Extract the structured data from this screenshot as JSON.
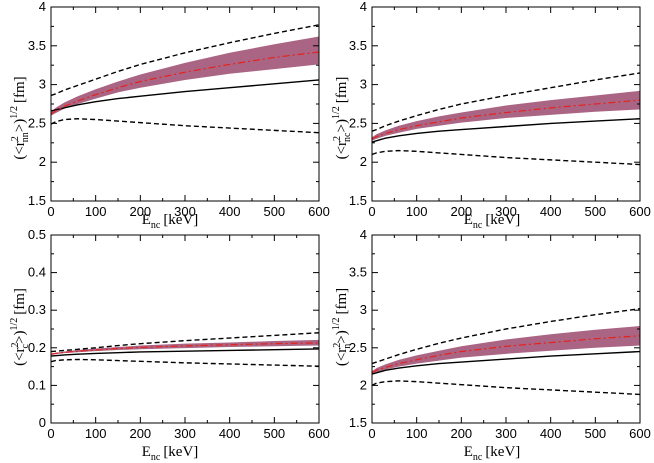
{
  "chart_data": [
    {
      "type": "line",
      "panel": "top-left",
      "xlabel": "E",
      "xlabel_sub": "nc",
      "xlabel_unit": "[keV]",
      "ylabel": {
        "open": "(<r",
        "sup": "2",
        "sub": "nn",
        "close": ">)",
        "power": "1/2",
        "unit": "[fm]"
      },
      "xlim": [
        0,
        600
      ],
      "ylim": [
        1.5,
        4
      ],
      "xticks": [
        "0",
        "100",
        "200",
        "300",
        "400",
        "500",
        "600"
      ],
      "yticks": [
        "1.5",
        "2",
        "2.5",
        "3",
        "3.5",
        "4"
      ],
      "series": [
        {
          "name": "upper-dashed",
          "style": "dashed",
          "x": [
            0,
            10,
            30,
            60,
            100,
            150,
            200,
            300,
            400,
            500,
            600
          ],
          "y": [
            2.86,
            2.88,
            2.93,
            2.99,
            3.07,
            3.17,
            3.26,
            3.41,
            3.54,
            3.66,
            3.77
          ]
        },
        {
          "name": "lower-dashed",
          "style": "dashed",
          "x": [
            0,
            10,
            30,
            60,
            100,
            150,
            200,
            300,
            400,
            500,
            600
          ],
          "y": [
            2.49,
            2.52,
            2.55,
            2.56,
            2.55,
            2.53,
            2.51,
            2.47,
            2.44,
            2.41,
            2.38
          ]
        },
        {
          "name": "solid",
          "style": "solid",
          "x": [
            0,
            30,
            60,
            100,
            150,
            200,
            300,
            400,
            500,
            600
          ],
          "y": [
            2.66,
            2.7,
            2.74,
            2.78,
            2.82,
            2.85,
            2.91,
            2.96,
            3.01,
            3.06
          ]
        },
        {
          "name": "central-dashdot",
          "style": "dashdot",
          "x": [
            0,
            10,
            30,
            60,
            100,
            150,
            200,
            300,
            400,
            500,
            600
          ],
          "y": [
            2.62,
            2.66,
            2.72,
            2.79,
            2.87,
            2.96,
            3.04,
            3.16,
            3.26,
            3.35,
            3.42
          ]
        }
      ],
      "band": {
        "x": [
          0,
          10,
          30,
          60,
          100,
          150,
          200,
          300,
          400,
          500,
          600
        ],
        "lower": [
          2.6,
          2.63,
          2.69,
          2.75,
          2.82,
          2.9,
          2.96,
          3.06,
          3.14,
          3.2,
          3.26
        ],
        "upper": [
          2.64,
          2.7,
          2.77,
          2.85,
          2.94,
          3.04,
          3.13,
          3.28,
          3.41,
          3.52,
          3.62
        ]
      }
    },
    {
      "type": "line",
      "panel": "top-right",
      "xlabel": "E",
      "xlabel_sub": "nc",
      "xlabel_unit": "[keV]",
      "ylabel": {
        "open": "(<r",
        "sup": "2",
        "sub": "nc",
        "close": ">)",
        "power": "1/2",
        "unit": "[fm]"
      },
      "xlim": [
        0,
        600
      ],
      "ylim": [
        1.5,
        4
      ],
      "xticks": [
        "0",
        "100",
        "200",
        "300",
        "400",
        "500",
        "600"
      ],
      "yticks": [
        "1.5",
        "2",
        "2.5",
        "3",
        "3.5",
        "4"
      ],
      "series": [
        {
          "name": "upper-dashed",
          "style": "dashed",
          "x": [
            0,
            10,
            30,
            60,
            100,
            150,
            200,
            300,
            400,
            500,
            600
          ],
          "y": [
            2.4,
            2.42,
            2.47,
            2.53,
            2.6,
            2.68,
            2.75,
            2.86,
            2.96,
            3.06,
            3.15
          ]
        },
        {
          "name": "lower-dashed",
          "style": "dashed",
          "x": [
            0,
            10,
            30,
            60,
            100,
            150,
            200,
            300,
            400,
            500,
            600
          ],
          "y": [
            2.1,
            2.12,
            2.14,
            2.15,
            2.14,
            2.12,
            2.1,
            2.06,
            2.03,
            2.0,
            1.97
          ]
        },
        {
          "name": "solid",
          "style": "solid",
          "x": [
            0,
            30,
            60,
            100,
            150,
            200,
            300,
            400,
            500,
            600
          ],
          "y": [
            2.26,
            2.31,
            2.34,
            2.37,
            2.4,
            2.42,
            2.46,
            2.5,
            2.53,
            2.56
          ]
        },
        {
          "name": "central-dashdot",
          "style": "dashdot",
          "x": [
            0,
            10,
            30,
            60,
            100,
            150,
            200,
            300,
            400,
            500,
            600
          ],
          "y": [
            2.3,
            2.33,
            2.37,
            2.42,
            2.47,
            2.52,
            2.57,
            2.64,
            2.7,
            2.75,
            2.8
          ]
        }
      ],
      "band": {
        "x": [
          0,
          10,
          30,
          60,
          100,
          150,
          200,
          300,
          400,
          500,
          600
        ],
        "lower": [
          2.28,
          2.3,
          2.34,
          2.38,
          2.43,
          2.47,
          2.51,
          2.57,
          2.61,
          2.65,
          2.68
        ],
        "upper": [
          2.32,
          2.36,
          2.41,
          2.47,
          2.53,
          2.59,
          2.64,
          2.73,
          2.8,
          2.86,
          2.92
        ]
      }
    },
    {
      "type": "line",
      "panel": "bottom-left",
      "xlabel": "E",
      "xlabel_sub": "nc",
      "xlabel_unit": "[keV]",
      "ylabel": {
        "open": "(<r",
        "sup": "2",
        "sub": "c",
        "close": ">)",
        "power": "1/2",
        "unit": "[fm]"
      },
      "xlim": [
        0,
        600
      ],
      "ylim": [
        0,
        0.5
      ],
      "xticks": [
        "0",
        "100",
        "200",
        "300",
        "400",
        "500",
        "600"
      ],
      "yticks": [
        "0",
        "0.1",
        "0.2",
        "0.3",
        "0.4",
        "0.5"
      ],
      "series": [
        {
          "name": "upper-dashed",
          "style": "dashed",
          "x": [
            0,
            10,
            30,
            60,
            100,
            150,
            200,
            300,
            400,
            500,
            600
          ],
          "y": [
            0.19,
            0.191,
            0.193,
            0.196,
            0.2,
            0.206,
            0.211,
            0.219,
            0.226,
            0.233,
            0.24
          ]
        },
        {
          "name": "lower-dashed",
          "style": "dashed",
          "x": [
            0,
            10,
            30,
            60,
            100,
            150,
            200,
            300,
            400,
            500,
            600
          ],
          "y": [
            0.163,
            0.166,
            0.168,
            0.169,
            0.168,
            0.166,
            0.164,
            0.16,
            0.157,
            0.154,
            0.151
          ]
        },
        {
          "name": "solid",
          "style": "solid",
          "x": [
            0,
            30,
            60,
            100,
            150,
            200,
            300,
            400,
            500,
            600
          ],
          "y": [
            0.178,
            0.181,
            0.183,
            0.185,
            0.187,
            0.189,
            0.191,
            0.193,
            0.195,
            0.197
          ]
        },
        {
          "name": "central-dashdot",
          "style": "dashdot",
          "x": [
            0,
            10,
            30,
            60,
            100,
            150,
            200,
            300,
            400,
            500,
            600
          ],
          "y": [
            0.183,
            0.185,
            0.188,
            0.191,
            0.194,
            0.198,
            0.201,
            0.205,
            0.208,
            0.211,
            0.213
          ]
        }
      ],
      "band": {
        "x": [
          0,
          10,
          30,
          60,
          100,
          150,
          200,
          300,
          400,
          500,
          600
        ],
        "lower": [
          0.181,
          0.183,
          0.186,
          0.188,
          0.191,
          0.194,
          0.196,
          0.199,
          0.202,
          0.204,
          0.206
        ],
        "upper": [
          0.185,
          0.187,
          0.19,
          0.194,
          0.198,
          0.202,
          0.206,
          0.211,
          0.214,
          0.218,
          0.221
        ]
      }
    },
    {
      "type": "line",
      "panel": "bottom-right",
      "xlabel": "E",
      "xlabel_sub": "nc",
      "xlabel_unit": "[keV]",
      "ylabel": {
        "open": "(<r",
        "sup": "2",
        "sub": "n",
        "close": ">)",
        "power": "1/2",
        "unit": "[fm]"
      },
      "xlim": [
        0,
        600
      ],
      "ylim": [
        1.5,
        4
      ],
      "xticks": [
        "0",
        "100",
        "200",
        "300",
        "400",
        "500",
        "600"
      ],
      "yticks": [
        "1.5",
        "2",
        "2.5",
        "3",
        "3.5",
        "4"
      ],
      "series": [
        {
          "name": "upper-dashed",
          "style": "dashed",
          "x": [
            0,
            10,
            30,
            60,
            100,
            150,
            200,
            300,
            400,
            500,
            600
          ],
          "y": [
            2.29,
            2.31,
            2.35,
            2.41,
            2.48,
            2.56,
            2.63,
            2.75,
            2.85,
            2.94,
            3.02
          ]
        },
        {
          "name": "lower-dashed",
          "style": "dashed",
          "x": [
            0,
            10,
            30,
            60,
            100,
            150,
            200,
            300,
            400,
            500,
            600
          ],
          "y": [
            2.0,
            2.03,
            2.05,
            2.06,
            2.05,
            2.03,
            2.01,
            1.97,
            1.94,
            1.91,
            1.88
          ]
        },
        {
          "name": "solid",
          "style": "solid",
          "x": [
            0,
            30,
            60,
            100,
            150,
            200,
            300,
            400,
            500,
            600
          ],
          "y": [
            2.15,
            2.2,
            2.23,
            2.26,
            2.29,
            2.31,
            2.35,
            2.39,
            2.42,
            2.45
          ]
        },
        {
          "name": "central-dashdot",
          "style": "dashdot",
          "x": [
            0,
            10,
            30,
            60,
            100,
            150,
            200,
            300,
            400,
            500,
            600
          ],
          "y": [
            2.17,
            2.2,
            2.24,
            2.29,
            2.34,
            2.4,
            2.45,
            2.52,
            2.57,
            2.62,
            2.66
          ]
        }
      ],
      "band": {
        "x": [
          0,
          10,
          30,
          60,
          100,
          150,
          200,
          300,
          400,
          500,
          600
        ],
        "lower": [
          2.15,
          2.17,
          2.21,
          2.25,
          2.29,
          2.33,
          2.37,
          2.42,
          2.46,
          2.5,
          2.53
        ],
        "upper": [
          2.19,
          2.23,
          2.28,
          2.34,
          2.4,
          2.46,
          2.52,
          2.61,
          2.68,
          2.74,
          2.79
        ]
      }
    }
  ],
  "colors": {
    "band": "#9b4a6e",
    "central": "#e8201a",
    "lines": "#000000"
  }
}
